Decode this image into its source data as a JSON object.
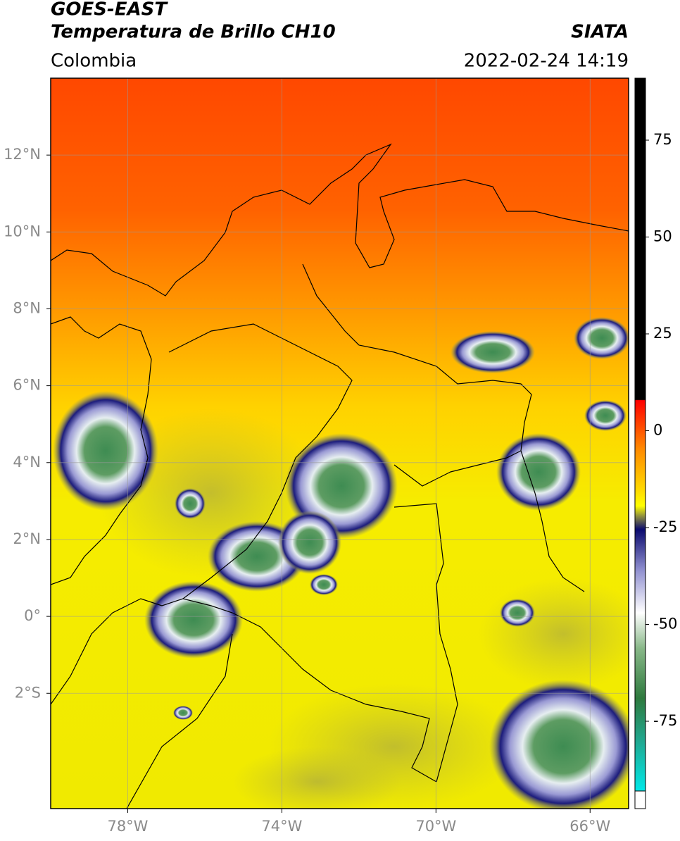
{
  "header": {
    "title": "GOES-EAST",
    "subtitle": "Temperatura de Brillo CH10",
    "source": "SIATA",
    "region": "Colombia",
    "datetime": "2022-02-24 14:19"
  },
  "map": {
    "xlim": [
      -80,
      -65
    ],
    "ylim": [
      -5,
      14
    ],
    "xticks": [
      {
        "value": -78,
        "label": "78°W"
      },
      {
        "value": -74,
        "label": "74°W"
      },
      {
        "value": -70,
        "label": "70°W"
      },
      {
        "value": -66,
        "label": "66°W"
      }
    ],
    "yticks": [
      {
        "value": 12,
        "label": "12°N"
      },
      {
        "value": 10,
        "label": "10°N"
      },
      {
        "value": 8,
        "label": "8°N"
      },
      {
        "value": 6,
        "label": "6°N"
      },
      {
        "value": 4,
        "label": "4°N"
      },
      {
        "value": 2,
        "label": "2°N"
      },
      {
        "value": 0,
        "label": "0°"
      },
      {
        "value": -2,
        "label": "2°S"
      }
    ],
    "grid": true
  },
  "colorbar": {
    "lim": [
      -93,
      91
    ],
    "ticks": [
      75,
      50,
      25,
      0,
      -25,
      -50,
      -75
    ]
  }
}
